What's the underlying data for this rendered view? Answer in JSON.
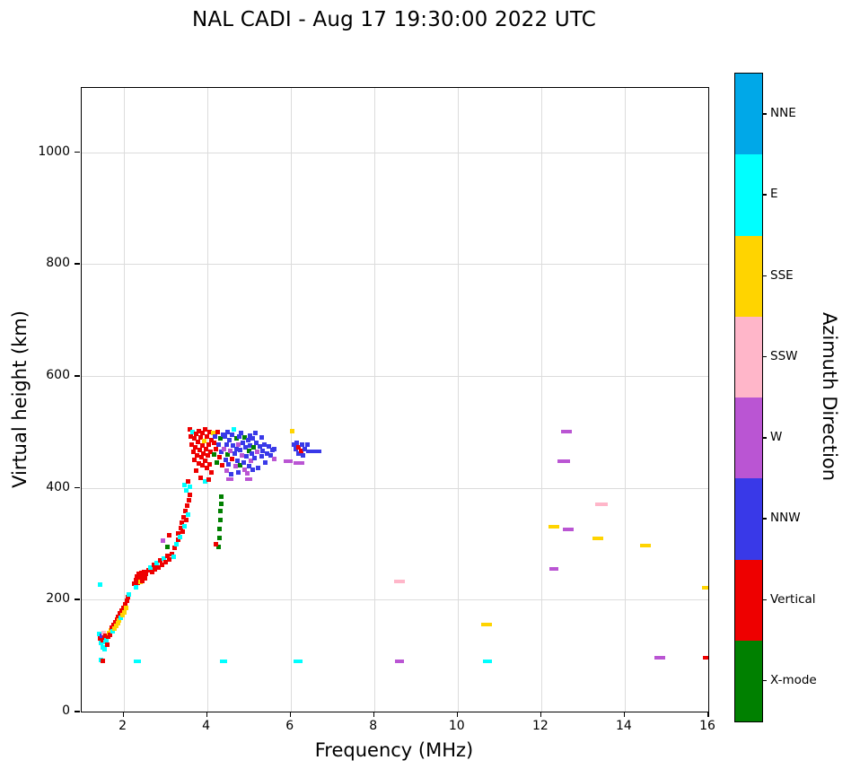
{
  "chart_data": {
    "type": "scatter",
    "title": "NAL CADI - Aug 17 19:30:00 2022 UTC",
    "xlabel": "Frequency (MHz)",
    "ylabel": "Virtual height (km)",
    "xlim": [
      1,
      16
    ],
    "ylim": [
      0,
      1115
    ],
    "x_ticks": [
      2,
      4,
      6,
      8,
      10,
      12,
      14,
      16
    ],
    "y_ticks": [
      0,
      200,
      400,
      600,
      800,
      1000
    ],
    "grid": true,
    "legend_position": "right-colorbar",
    "colorbar": {
      "label": "Azimuth Direction",
      "categories": [
        {
          "name": "NNE",
          "color": "#00a8e8"
        },
        {
          "name": "E",
          "color": "#00ffff"
        },
        {
          "name": "SSE",
          "color": "#ffd400"
        },
        {
          "name": "SSW",
          "color": "#ffb6c9"
        },
        {
          "name": "W",
          "color": "#ba55d3"
        },
        {
          "name": "NNW",
          "color": "#3939e8"
        },
        {
          "name": "Vertical",
          "color": "#ee0000"
        },
        {
          "name": "X-mode",
          "color": "#008000"
        }
      ]
    },
    "color_keys": {
      "N": "NNE",
      "E": "E",
      "S": "SSE",
      "P": "SSW",
      "W": "W",
      "B": "NNW",
      "V": "Vertical",
      "X": "X-mode"
    },
    "points_format": "[frequency_MHz, virtual_height_km, direction_key, optional_dash_width_px]",
    "points": [
      [
        1.46,
        93,
        "E"
      ],
      [
        1.5,
        90,
        "V"
      ],
      [
        2.33,
        90,
        "E",
        8
      ],
      [
        4.4,
        90,
        "E",
        8
      ],
      [
        6.17,
        90,
        "E",
        10
      ],
      [
        8.6,
        90,
        "W",
        10
      ],
      [
        10.72,
        90,
        "E",
        10
      ],
      [
        14.85,
        97,
        "W",
        12
      ],
      [
        15.97,
        97,
        "V",
        10
      ],
      [
        1.45,
        227,
        "E"
      ],
      [
        1.42,
        138,
        "E"
      ],
      [
        1.44,
        130,
        "V"
      ],
      [
        1.46,
        122,
        "E"
      ],
      [
        1.48,
        135,
        "B"
      ],
      [
        1.5,
        127,
        "V"
      ],
      [
        1.5,
        115,
        "E"
      ],
      [
        1.52,
        140,
        "P"
      ],
      [
        1.54,
        132,
        "V"
      ],
      [
        1.56,
        124,
        "E"
      ],
      [
        1.58,
        136,
        "V"
      ],
      [
        1.6,
        128,
        "E"
      ],
      [
        1.62,
        120,
        "V"
      ],
      [
        1.55,
        112,
        "E"
      ],
      [
        1.64,
        134,
        "V"
      ],
      [
        1.66,
        140,
        "S"
      ],
      [
        1.68,
        137,
        "V"
      ],
      [
        1.7,
        145,
        "S"
      ],
      [
        1.72,
        150,
        "V"
      ],
      [
        1.74,
        143,
        "E"
      ],
      [
        1.76,
        155,
        "V"
      ],
      [
        1.78,
        148,
        "S"
      ],
      [
        1.8,
        160,
        "V"
      ],
      [
        1.82,
        153,
        "S"
      ],
      [
        1.84,
        165,
        "V"
      ],
      [
        1.86,
        158,
        "S"
      ],
      [
        1.88,
        170,
        "V"
      ],
      [
        1.9,
        163,
        "S"
      ],
      [
        1.92,
        175,
        "V"
      ],
      [
        1.94,
        168,
        "E"
      ],
      [
        1.96,
        180,
        "V"
      ],
      [
        1.98,
        173,
        "S"
      ],
      [
        2.0,
        186,
        "V"
      ],
      [
        2.02,
        178,
        "S"
      ],
      [
        2.04,
        192,
        "V"
      ],
      [
        2.06,
        185,
        "S"
      ],
      [
        2.08,
        198,
        "V"
      ],
      [
        2.1,
        205,
        "V"
      ],
      [
        2.12,
        210,
        "E"
      ],
      [
        2.26,
        228,
        "V"
      ],
      [
        2.3,
        235,
        "V"
      ],
      [
        2.32,
        242,
        "V"
      ],
      [
        2.34,
        230,
        "V"
      ],
      [
        2.36,
        246,
        "V"
      ],
      [
        2.38,
        238,
        "V"
      ],
      [
        2.4,
        232,
        "S"
      ],
      [
        2.42,
        248,
        "V"
      ],
      [
        2.44,
        240,
        "V"
      ],
      [
        2.46,
        234,
        "V"
      ],
      [
        2.48,
        244,
        "V"
      ],
      [
        2.5,
        250,
        "V"
      ],
      [
        2.52,
        238,
        "V"
      ],
      [
        2.54,
        246,
        "V"
      ],
      [
        2.3,
        222,
        "E"
      ],
      [
        2.6,
        252,
        "V"
      ],
      [
        2.64,
        258,
        "E"
      ],
      [
        2.68,
        250,
        "V"
      ],
      [
        2.72,
        262,
        "V"
      ],
      [
        2.76,
        255,
        "V"
      ],
      [
        2.8,
        266,
        "E"
      ],
      [
        2.84,
        258,
        "V"
      ],
      [
        2.88,
        270,
        "V"
      ],
      [
        2.92,
        263,
        "V"
      ],
      [
        2.96,
        274,
        "E"
      ],
      [
        3.0,
        267,
        "V"
      ],
      [
        3.05,
        278,
        "V"
      ],
      [
        3.1,
        272,
        "V"
      ],
      [
        3.15,
        282,
        "V"
      ],
      [
        3.2,
        276,
        "E"
      ],
      [
        2.95,
        305,
        "W"
      ],
      [
        3.05,
        295,
        "X"
      ],
      [
        3.1,
        315,
        "V"
      ],
      [
        3.22,
        292,
        "V"
      ],
      [
        3.26,
        300,
        "E"
      ],
      [
        3.3,
        308,
        "V"
      ],
      [
        3.32,
        318,
        "V"
      ],
      [
        3.36,
        312,
        "E"
      ],
      [
        3.38,
        328,
        "V"
      ],
      [
        3.4,
        338,
        "V"
      ],
      [
        3.42,
        322,
        "V"
      ],
      [
        3.44,
        348,
        "V"
      ],
      [
        3.46,
        332,
        "E"
      ],
      [
        3.48,
        358,
        "V"
      ],
      [
        3.5,
        342,
        "V"
      ],
      [
        3.52,
        368,
        "V"
      ],
      [
        3.54,
        352,
        "E"
      ],
      [
        3.56,
        378,
        "V"
      ],
      [
        3.58,
        388,
        "V"
      ],
      [
        3.5,
        396,
        "E"
      ],
      [
        3.45,
        405,
        "E"
      ],
      [
        3.55,
        412,
        "V"
      ],
      [
        3.6,
        402,
        "E"
      ],
      [
        3.6,
        505,
        "V"
      ],
      [
        3.62,
        492,
        "V"
      ],
      [
        3.64,
        478,
        "V"
      ],
      [
        3.66,
        500,
        "E"
      ],
      [
        3.68,
        465,
        "V"
      ],
      [
        3.7,
        488,
        "V"
      ],
      [
        3.7,
        450,
        "V"
      ],
      [
        3.72,
        472,
        "V"
      ],
      [
        3.74,
        496,
        "V"
      ],
      [
        3.76,
        458,
        "V"
      ],
      [
        3.78,
        482,
        "V"
      ],
      [
        3.8,
        502,
        "V"
      ],
      [
        3.8,
        444,
        "V"
      ],
      [
        3.82,
        468,
        "V"
      ],
      [
        3.84,
        490,
        "V"
      ],
      [
        3.86,
        455,
        "V"
      ],
      [
        3.88,
        476,
        "V"
      ],
      [
        3.9,
        498,
        "V"
      ],
      [
        3.9,
        440,
        "V"
      ],
      [
        3.92,
        462,
        "V"
      ],
      [
        3.94,
        484,
        "S"
      ],
      [
        3.96,
        505,
        "V"
      ],
      [
        3.96,
        448,
        "V"
      ],
      [
        3.98,
        470,
        "V"
      ],
      [
        4.0,
        492,
        "V"
      ],
      [
        4.0,
        435,
        "V"
      ],
      [
        4.02,
        458,
        "V"
      ],
      [
        4.04,
        478,
        "V"
      ],
      [
        4.06,
        500,
        "V"
      ],
      [
        4.06,
        442,
        "V"
      ],
      [
        4.08,
        465,
        "V"
      ],
      [
        4.1,
        486,
        "V"
      ],
      [
        4.1,
        428,
        "V"
      ],
      [
        3.75,
        430,
        "V"
      ],
      [
        3.85,
        418,
        "V"
      ],
      [
        3.95,
        412,
        "E"
      ],
      [
        4.05,
        415,
        "V"
      ],
      [
        4.14,
        498,
        "S"
      ],
      [
        4.16,
        480,
        "V"
      ],
      [
        4.18,
        460,
        "X"
      ],
      [
        4.2,
        492,
        "B"
      ],
      [
        4.22,
        470,
        "V"
      ],
      [
        4.24,
        445,
        "X"
      ],
      [
        4.26,
        500,
        "V"
      ],
      [
        4.28,
        478,
        "B"
      ],
      [
        4.3,
        455,
        "V"
      ],
      [
        4.32,
        488,
        "X"
      ],
      [
        4.34,
        465,
        "B"
      ],
      [
        4.36,
        440,
        "V"
      ],
      [
        4.38,
        495,
        "B"
      ],
      [
        4.28,
        295,
        "X"
      ],
      [
        4.3,
        310,
        "X"
      ],
      [
        4.3,
        326,
        "X"
      ],
      [
        4.32,
        342,
        "X"
      ],
      [
        4.32,
        358,
        "X"
      ],
      [
        4.34,
        372,
        "X"
      ],
      [
        4.34,
        385,
        "X"
      ],
      [
        4.22,
        300,
        "V"
      ],
      [
        4.4,
        470,
        "W"
      ],
      [
        4.42,
        492,
        "B"
      ],
      [
        4.44,
        450,
        "B"
      ],
      [
        4.46,
        478,
        "B"
      ],
      [
        4.48,
        430,
        "W"
      ],
      [
        4.5,
        500,
        "B"
      ],
      [
        4.5,
        460,
        "X"
      ],
      [
        4.52,
        442,
        "B"
      ],
      [
        4.54,
        486,
        "B"
      ],
      [
        4.56,
        466,
        "W"
      ],
      [
        4.58,
        425,
        "B"
      ],
      [
        4.6,
        495,
        "B"
      ],
      [
        4.6,
        452,
        "V"
      ],
      [
        4.62,
        475,
        "B"
      ],
      [
        4.64,
        505,
        "E"
      ],
      [
        4.66,
        462,
        "B"
      ],
      [
        4.68,
        438,
        "W"
      ],
      [
        4.7,
        488,
        "X"
      ],
      [
        4.7,
        470,
        "B"
      ],
      [
        4.72,
        448,
        "B"
      ],
      [
        4.74,
        478,
        "W"
      ],
      [
        4.76,
        428,
        "B"
      ],
      [
        4.78,
        492,
        "B"
      ],
      [
        4.8,
        468,
        "B"
      ],
      [
        4.8,
        440,
        "X"
      ],
      [
        4.82,
        498,
        "B"
      ],
      [
        4.84,
        458,
        "W"
      ],
      [
        4.86,
        480,
        "B"
      ],
      [
        4.88,
        446,
        "B"
      ],
      [
        4.9,
        490,
        "X"
      ],
      [
        4.9,
        432,
        "W"
      ],
      [
        4.92,
        472,
        "B"
      ],
      [
        4.94,
        456,
        "B"
      ],
      [
        4.96,
        426,
        "W"
      ],
      [
        4.98,
        486,
        "B"
      ],
      [
        5.0,
        466,
        "X"
      ],
      [
        5.0,
        438,
        "B"
      ],
      [
        5.02,
        494,
        "B"
      ],
      [
        5.04,
        476,
        "B"
      ],
      [
        5.06,
        448,
        "W"
      ],
      [
        5.08,
        462,
        "B"
      ],
      [
        5.1,
        488,
        "B"
      ],
      [
        5.1,
        432,
        "B"
      ],
      [
        5.12,
        472,
        "X"
      ],
      [
        5.14,
        454,
        "B"
      ],
      [
        5.16,
        498,
        "B"
      ],
      [
        5.18,
        480,
        "B"
      ],
      [
        5.2,
        464,
        "W"
      ],
      [
        5.22,
        436,
        "B"
      ],
      [
        5.26,
        474,
        "B"
      ],
      [
        5.3,
        456,
        "B"
      ],
      [
        5.3,
        490,
        "B"
      ],
      [
        5.34,
        466,
        "B"
      ],
      [
        5.38,
        478,
        "B"
      ],
      [
        5.4,
        446,
        "B"
      ],
      [
        5.44,
        462,
        "B"
      ],
      [
        5.48,
        474,
        "B"
      ],
      [
        5.52,
        458,
        "B"
      ],
      [
        5.56,
        468,
        "B"
      ],
      [
        5.6,
        452,
        "W"
      ],
      [
        5.62,
        470,
        "B"
      ],
      [
        4.55,
        415,
        "W",
        8
      ],
      [
        5.0,
        416,
        "W",
        8
      ],
      [
        5.95,
        448,
        "W",
        10
      ],
      [
        6.2,
        444,
        "W",
        12
      ],
      [
        6.05,
        502,
        "S"
      ],
      [
        6.08,
        478,
        "B"
      ],
      [
        6.12,
        470,
        "B"
      ],
      [
        6.15,
        480,
        "B"
      ],
      [
        6.18,
        462,
        "B"
      ],
      [
        6.2,
        472,
        "V"
      ],
      [
        6.25,
        466,
        "V"
      ],
      [
        6.28,
        478,
        "B"
      ],
      [
        6.3,
        458,
        "B"
      ],
      [
        6.35,
        470,
        "B"
      ],
      [
        6.4,
        478,
        "B"
      ],
      [
        6.45,
        465,
        "B",
        8
      ],
      [
        6.55,
        465,
        "B",
        10
      ],
      [
        6.65,
        465,
        "B",
        8
      ],
      [
        8.6,
        232,
        "P",
        12
      ],
      [
        10.7,
        155,
        "S",
        12
      ],
      [
        12.3,
        330,
        "S",
        12
      ],
      [
        12.65,
        325,
        "W",
        12
      ],
      [
        13.35,
        310,
        "S",
        12
      ],
      [
        13.45,
        370,
        "P",
        14
      ],
      [
        14.5,
        297,
        "S",
        12
      ],
      [
        15.95,
        222,
        "S",
        10
      ],
      [
        12.6,
        500,
        "W",
        12
      ],
      [
        12.55,
        448,
        "W",
        14
      ],
      [
        12.3,
        255,
        "W",
        10
      ]
    ]
  }
}
